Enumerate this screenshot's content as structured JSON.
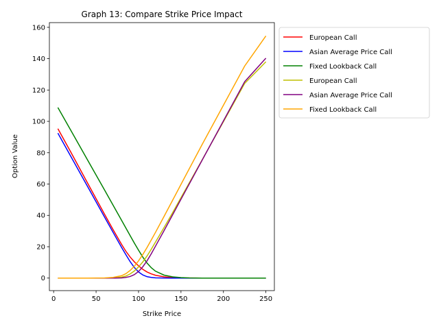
{
  "chart_data": {
    "type": "line",
    "title": "Graph 13: Compare Strike Price Impact",
    "xlabel": "Strike Price",
    "ylabel": "Option Value",
    "xlim": [
      -5,
      260
    ],
    "ylim": [
      -8,
      163
    ],
    "xticks": [
      0,
      50,
      100,
      150,
      200,
      250
    ],
    "yticks": [
      0,
      20,
      40,
      60,
      80,
      100,
      120,
      140,
      160
    ],
    "grid": false,
    "legend_position": "outside-right",
    "series": [
      {
        "name": "European Call",
        "color": "#ff0000",
        "x": [
          5,
          20,
          40,
          60,
          70,
          80,
          85,
          90,
          95,
          100,
          105,
          110,
          115,
          120,
          130,
          140,
          150,
          175,
          200,
          225,
          250
        ],
        "y": [
          95.3,
          80.6,
          60.6,
          40.7,
          30.9,
          21.5,
          17.2,
          13.5,
          10.4,
          7.8,
          5.6,
          3.9,
          2.7,
          1.8,
          0.8,
          0.3,
          0.1,
          0.0,
          0.0,
          0.0,
          0.0
        ]
      },
      {
        "name": "Asian Average Price Call",
        "color": "#0000ff",
        "x": [
          5,
          20,
          40,
          60,
          70,
          80,
          85,
          90,
          95,
          100,
          105,
          110,
          115,
          120,
          130,
          140,
          150,
          175,
          200,
          225,
          250
        ],
        "y": [
          92.5,
          77.9,
          58.4,
          38.9,
          29.2,
          19.6,
          15.0,
          10.6,
          6.8,
          3.9,
          2.0,
          0.9,
          0.4,
          0.15,
          0.05,
          0.0,
          0.0,
          0.0,
          0.0,
          0.0,
          0.0
        ]
      },
      {
        "name": "Fixed Lookback Call",
        "color": "#008000",
        "x": [
          5,
          20,
          40,
          60,
          80,
          90,
          95,
          100,
          105,
          110,
          115,
          120,
          130,
          140,
          150,
          160,
          175,
          200,
          225,
          250
        ],
        "y": [
          108.8,
          94.5,
          75.3,
          56.2,
          36.9,
          27.2,
          22.4,
          17.8,
          13.4,
          9.6,
          6.6,
          4.4,
          1.9,
          0.8,
          0.3,
          0.1,
          0.0,
          0.0,
          0.0,
          0.0
        ]
      },
      {
        "name": "European Call",
        "color": "#bfbf00",
        "x": [
          5,
          40,
          60,
          70,
          80,
          85,
          90,
          95,
          100,
          105,
          110,
          115,
          120,
          130,
          140,
          150,
          175,
          200,
          225,
          250
        ],
        "y": [
          0.0,
          0.0,
          0.0,
          0.1,
          0.6,
          1.3,
          2.6,
          4.5,
          7.1,
          10.3,
          14.1,
          18.4,
          23.0,
          32.2,
          41.6,
          51.3,
          75.5,
          99.8,
          124.2,
          138.0
        ]
      },
      {
        "name": "Asian Average Price Call",
        "color": "#800080",
        "x": [
          5,
          40,
          60,
          70,
          80,
          85,
          90,
          95,
          100,
          105,
          110,
          115,
          120,
          130,
          140,
          150,
          175,
          200,
          225,
          250
        ],
        "y": [
          0.0,
          0.0,
          0.0,
          0.0,
          0.1,
          0.4,
          1.0,
          2.2,
          4.2,
          7.2,
          11.0,
          15.5,
          20.4,
          30.2,
          40.2,
          50.3,
          75.3,
          100.3,
          125.3,
          140.3
        ]
      },
      {
        "name": "Fixed Lookback Call",
        "color": "#ffa500",
        "x": [
          5,
          40,
          60,
          70,
          80,
          85,
          90,
          95,
          100,
          105,
          110,
          115,
          120,
          130,
          140,
          150,
          175,
          200,
          225,
          250
        ],
        "y": [
          0.0,
          0.0,
          0.1,
          0.4,
          1.5,
          2.8,
          4.8,
          7.5,
          11.0,
          15.0,
          19.5,
          24.3,
          29.2,
          39.3,
          49.5,
          59.8,
          85.3,
          110.3,
          135.3,
          154.5
        ]
      }
    ]
  }
}
